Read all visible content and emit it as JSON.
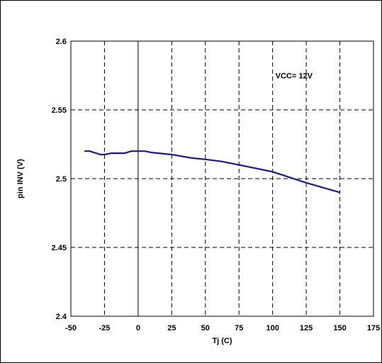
{
  "chart_data": {
    "type": "line",
    "title": "",
    "xlabel": "Tj (C)",
    "ylabel": "pin INV (V)",
    "xlim": [
      -50,
      175
    ],
    "ylim": [
      2.4,
      2.6
    ],
    "xticks": [
      -50,
      -25,
      0,
      25,
      50,
      75,
      100,
      125,
      150,
      175
    ],
    "xtick_labels": [
      "-50",
      "-25",
      "0",
      "25",
      "50",
      "75",
      "100",
      "125",
      "150",
      "175"
    ],
    "yticks": [
      2.4,
      2.45,
      2.5,
      2.55,
      2.6
    ],
    "ytick_labels": [
      "2.4",
      "2.45",
      "2.5",
      "2.55",
      "2.6"
    ],
    "grid": true,
    "annotation": "VCC= 12V",
    "colors": {
      "line": "#1a1a8c"
    },
    "series": [
      {
        "x": [
          -40,
          -36,
          -33,
          -28,
          -25,
          -20,
          -15,
          -10,
          -5,
          0,
          5,
          10,
          25,
          40,
          50,
          62,
          75,
          100,
          125,
          150
        ],
        "y": [
          2.52,
          2.52,
          2.519,
          2.5175,
          2.5175,
          2.5185,
          2.5185,
          2.5185,
          2.52,
          2.52,
          2.52,
          2.519,
          2.5175,
          2.515,
          2.514,
          2.5125,
          2.51,
          2.505,
          2.497,
          2.49
        ]
      }
    ]
  }
}
